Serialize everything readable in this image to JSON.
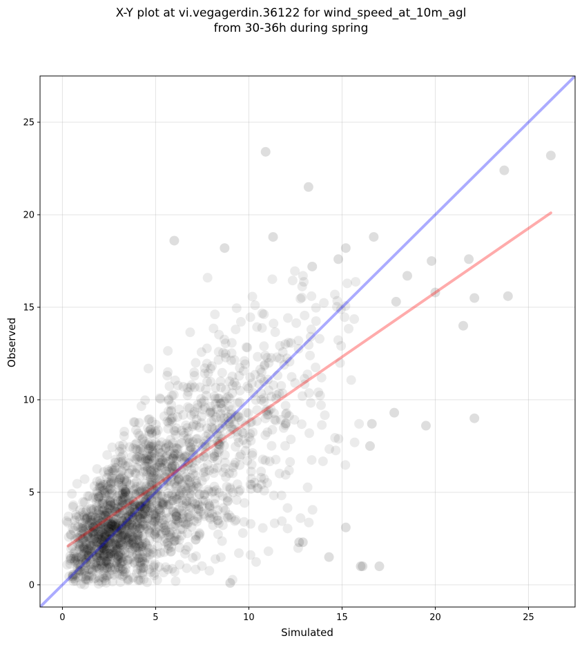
{
  "chart_data": {
    "type": "scatter",
    "title_line1": "X-Y plot at vi.vegagerdin.36122 for wind_speed_at_10m_agl",
    "title_line2": "from 30-36h during spring",
    "xlabel": "Simulated",
    "ylabel": "Observed",
    "xlim": [
      -1.2,
      27.5
    ],
    "ylim": [
      -1.2,
      27.5
    ],
    "x_ticks": [
      0,
      5,
      10,
      15,
      20,
      25
    ],
    "y_ticks": [
      0,
      5,
      10,
      15,
      20,
      25
    ],
    "grid": true,
    "point_color": "#000000",
    "point_opacity": 0.08,
    "identity_line": {
      "color": "#0000ff",
      "x": [
        -1.2,
        27.5
      ],
      "y": [
        -1.2,
        27.5
      ]
    },
    "fit_line": {
      "color": "#ff0000",
      "x": [
        0.3,
        26.2
      ],
      "y": [
        2.1,
        20.1
      ]
    },
    "outlier_points": {
      "x": [
        10.9,
        13.2,
        6.0,
        8.7,
        11.3,
        15.2,
        16.7,
        14.8,
        13.4,
        26.2,
        23.7,
        21.8,
        19.8,
        17.9,
        18.5,
        20.0,
        23.9,
        22.1,
        21.5,
        22.1,
        19.5,
        17.8,
        16.5,
        16.6,
        17.0,
        16.0,
        16.1,
        15.2,
        14.3,
        12.7,
        12.9,
        9.0
      ],
      "y": [
        23.4,
        21.5,
        18.6,
        18.2,
        18.8,
        18.2,
        18.8,
        17.6,
        17.2,
        23.2,
        22.4,
        17.6,
        17.5,
        15.3,
        16.7,
        15.8,
        15.6,
        15.5,
        14.0,
        9.0,
        8.6,
        9.3,
        7.5,
        8.7,
        1.0,
        1.0,
        1.0,
        3.1,
        1.5,
        2.3,
        2.3,
        0.1
      ]
    },
    "cloud": {
      "seed": 36122,
      "count": 1900,
      "x_min": 0.2,
      "x_max": 16.0,
      "y_min": 0.0,
      "y_max": 17.0,
      "notes_fit_slope": 0.69,
      "notes_fit_intercept": 1.9
    }
  }
}
